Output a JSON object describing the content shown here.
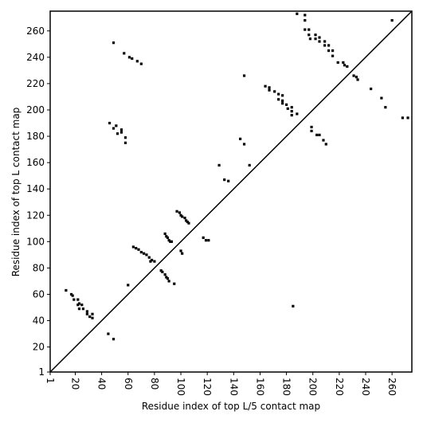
{
  "chart_data": {
    "type": "scatter",
    "xlabel": "Residue index of top L/5 contact map",
    "ylabel": "Residue index of top L contact map",
    "xlim": [
      1,
      275
    ],
    "ylim": [
      1,
      275
    ],
    "xticks": [
      1,
      20,
      40,
      60,
      80,
      100,
      120,
      140,
      160,
      180,
      200,
      220,
      240,
      260
    ],
    "yticks": [
      1,
      20,
      40,
      60,
      80,
      100,
      120,
      140,
      160,
      180,
      200,
      220,
      240,
      260
    ],
    "color": "#000000",
    "x": [
      13,
      17,
      18,
      19,
      22,
      23,
      22,
      25,
      23,
      26,
      29,
      29,
      31,
      33,
      33,
      45,
      49,
      49,
      57,
      61,
      63,
      67,
      70,
      46,
      51,
      49,
      55,
      52,
      55,
      58,
      58,
      60,
      64,
      66,
      68,
      70,
      72,
      74,
      76,
      78,
      80,
      77,
      85,
      86,
      88,
      89,
      90,
      91,
      88,
      89,
      90,
      91,
      92,
      93,
      95,
      97,
      99,
      100,
      101,
      103,
      104,
      105,
      106,
      100,
      101,
      117,
      119,
      121,
      129,
      133,
      136,
      145,
      148,
      152,
      148,
      164,
      167,
      167,
      171,
      174,
      174,
      177,
      177,
      177,
      180,
      181,
      184,
      184,
      188,
      184,
      185,
      188,
      194,
      194,
      194,
      197,
      197,
      198,
      202,
      202,
      205,
      205,
      209,
      209,
      212,
      212,
      215,
      215,
      219,
      223,
      224,
      226,
      199,
      199,
      203,
      205,
      208,
      210,
      231,
      233,
      234,
      244,
      252,
      255,
      260,
      268,
      272
    ],
    "y": [
      63,
      60,
      59,
      56,
      56,
      53,
      52,
      52,
      49,
      49,
      47,
      45,
      43,
      42,
      45,
      30,
      26,
      251,
      243,
      240,
      239,
      237,
      235,
      190,
      188,
      186,
      185,
      182,
      183,
      179,
      175,
      67,
      96,
      95,
      94,
      92,
      91,
      90,
      88,
      86,
      85,
      85,
      78,
      77,
      75,
      73,
      72,
      70,
      106,
      104,
      103,
      101,
      100,
      100,
      68,
      123,
      122,
      120,
      119,
      118,
      116,
      115,
      114,
      93,
      91,
      103,
      101,
      101,
      158,
      147,
      146,
      178,
      174,
      158,
      226,
      218,
      217,
      215,
      214,
      212,
      208,
      211,
      207,
      205,
      204,
      201,
      202,
      199,
      197,
      196,
      51,
      273,
      272,
      268,
      261,
      261,
      257,
      254,
      257,
      254,
      255,
      252,
      252,
      249,
      249,
      245,
      245,
      241,
      236,
      236,
      234,
      233,
      187,
      184,
      181,
      181,
      177,
      174,
      226,
      225,
      223,
      216,
      209,
      202,
      268,
      194,
      194
    ]
  }
}
